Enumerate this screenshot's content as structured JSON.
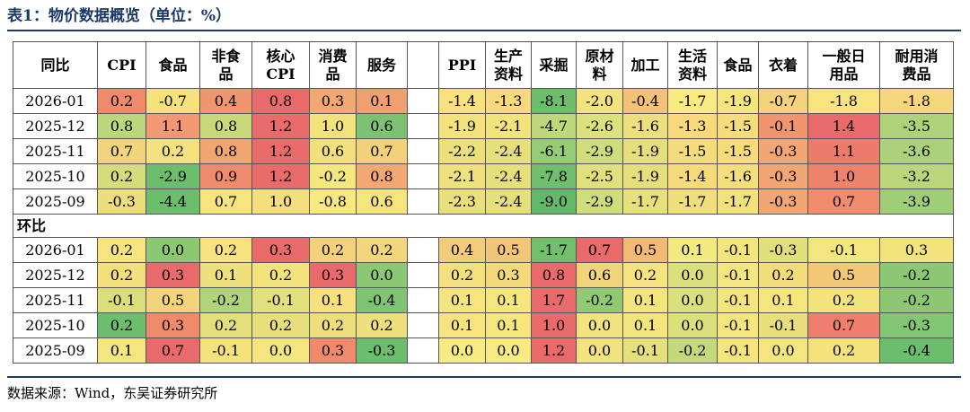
{
  "title": "表1：物价数据概览（单位：%）",
  "source": "数据来源：Wind，东吴证券研究所",
  "section_yoy": "同比",
  "section_mom": "环比",
  "headers_left": [
    "CPI",
    "食品",
    "非食\n品",
    "核心\nCPI",
    "消费\n品",
    "服务"
  ],
  "headers_right": [
    "PPI",
    "生产\n资料",
    "采掘",
    "原材\n料",
    "加工",
    "生活\n资料",
    "食品",
    "衣着",
    "一般日\n用品",
    "耐用消\n费品"
  ],
  "yoy_rows": [
    {
      "date": "2026-01",
      "left": [
        {
          "v": "0.2",
          "c": "#f08a6c"
        },
        {
          "v": "-0.7",
          "c": "#f5e27a"
        },
        {
          "v": "0.4",
          "c": "#f0956e"
        },
        {
          "v": "0.8",
          "c": "#e96a6a"
        },
        {
          "v": "0.3",
          "c": "#f1a873"
        },
        {
          "v": "0.1",
          "c": "#f0a070"
        }
      ],
      "right": [
        {
          "v": "-1.4",
          "c": "#f9e17e"
        },
        {
          "v": "-1.3",
          "c": "#f9d97d"
        },
        {
          "v": "-8.1",
          "c": "#6cbd6c"
        },
        {
          "v": "-2.0",
          "c": "#f2e37c"
        },
        {
          "v": "-0.4",
          "c": "#f4c277"
        },
        {
          "v": "-1.7",
          "c": "#faec82"
        },
        {
          "v": "-1.9",
          "c": "#f4e67d"
        },
        {
          "v": "-0.7",
          "c": "#f4d27b"
        },
        {
          "v": "-1.8",
          "c": "#f7e47f"
        },
        {
          "v": "-1.8",
          "c": "#f6d77b"
        }
      ]
    },
    {
      "date": "2025-12",
      "left": [
        {
          "v": "0.8",
          "c": "#bcd67c"
        },
        {
          "v": "1.1",
          "c": "#f29872"
        },
        {
          "v": "0.8",
          "c": "#c9d97a"
        },
        {
          "v": "1.2",
          "c": "#e96a6a"
        },
        {
          "v": "1.0",
          "c": "#f1e27c"
        },
        {
          "v": "0.6",
          "c": "#7dc273"
        }
      ],
      "right": [
        {
          "v": "-1.9",
          "c": "#f4e27e"
        },
        {
          "v": "-2.1",
          "c": "#f1e47c"
        },
        {
          "v": "-4.7",
          "c": "#bfd97a"
        },
        {
          "v": "-2.6",
          "c": "#dbe17c"
        },
        {
          "v": "-1.6",
          "c": "#ecdf7d"
        },
        {
          "v": "-1.3",
          "c": "#f8d97c"
        },
        {
          "v": "-1.5",
          "c": "#f7dc7b"
        },
        {
          "v": "-0.1",
          "c": "#f0956e"
        },
        {
          "v": "1.4",
          "c": "#e96a6a"
        },
        {
          "v": "-3.5",
          "c": "#aed27a"
        }
      ]
    },
    {
      "date": "2025-11",
      "left": [
        {
          "v": "0.7",
          "c": "#f1d47b"
        },
        {
          "v": "0.2",
          "c": "#f3e27d"
        },
        {
          "v": "0.8",
          "c": "#f1a672"
        },
        {
          "v": "1.2",
          "c": "#e96a6a"
        },
        {
          "v": "0.6",
          "c": "#f1e07c"
        },
        {
          "v": "0.7",
          "c": "#f3d17a"
        }
      ],
      "right": [
        {
          "v": "-2.2",
          "c": "#ece07d"
        },
        {
          "v": "-2.4",
          "c": "#e5e07c"
        },
        {
          "v": "-6.1",
          "c": "#97cb76"
        },
        {
          "v": "-2.9",
          "c": "#cfdd7c"
        },
        {
          "v": "-1.9",
          "c": "#e4de7c"
        },
        {
          "v": "-1.5",
          "c": "#f4dc7c"
        },
        {
          "v": "-1.5",
          "c": "#f7dc7b"
        },
        {
          "v": "-0.3",
          "c": "#f1a673"
        },
        {
          "v": "1.1",
          "c": "#ec7b6c"
        },
        {
          "v": "-3.6",
          "c": "#acd17a"
        }
      ]
    },
    {
      "date": "2025-10",
      "left": [
        {
          "v": "0.2",
          "c": "#d4dc7b"
        },
        {
          "v": "-2.9",
          "c": "#6cbd6c"
        },
        {
          "v": "0.9",
          "c": "#f08a6c"
        },
        {
          "v": "1.2",
          "c": "#e96a6a"
        },
        {
          "v": "-0.2",
          "c": "#f4e77e"
        },
        {
          "v": "0.8",
          "c": "#f3a873"
        }
      ],
      "right": [
        {
          "v": "-2.1",
          "c": "#efe17d"
        },
        {
          "v": "-2.4",
          "c": "#e5e07c"
        },
        {
          "v": "-7.8",
          "c": "#70bf6e"
        },
        {
          "v": "-2.5",
          "c": "#e0e07c"
        },
        {
          "v": "-1.9",
          "c": "#e4de7c"
        },
        {
          "v": "-1.4",
          "c": "#f6da7c"
        },
        {
          "v": "-1.6",
          "c": "#f5df7c"
        },
        {
          "v": "-0.3",
          "c": "#f1a673"
        },
        {
          "v": "1.0",
          "c": "#ee836d"
        },
        {
          "v": "-3.2",
          "c": "#bad67b"
        }
      ]
    },
    {
      "date": "2025-09",
      "left": [
        {
          "v": "-0.3",
          "c": "#ecde7c"
        },
        {
          "v": "-4.4",
          "c": "#6cbd6c"
        },
        {
          "v": "0.7",
          "c": "#f6e47e"
        },
        {
          "v": "1.0",
          "c": "#f5de7c"
        },
        {
          "v": "-0.8",
          "c": "#f7e87f"
        },
        {
          "v": "0.6",
          "c": "#f6e47d"
        }
      ],
      "right": [
        {
          "v": "-2.3",
          "c": "#e9df7d"
        },
        {
          "v": "-2.4",
          "c": "#e5e07c"
        },
        {
          "v": "-9.0",
          "c": "#63b96a"
        },
        {
          "v": "-2.9",
          "c": "#cfdd7c"
        },
        {
          "v": "-1.7",
          "c": "#e8df7d"
        },
        {
          "v": "-1.7",
          "c": "#f0e07d"
        },
        {
          "v": "-1.7",
          "c": "#f2e27d"
        },
        {
          "v": "-0.3",
          "c": "#f1a673"
        },
        {
          "v": "0.7",
          "c": "#f08d6e"
        },
        {
          "v": "-3.9",
          "c": "#a0cd78"
        }
      ]
    }
  ],
  "mom_rows": [
    {
      "date": "2026-01",
      "left": [
        {
          "v": "0.2",
          "c": "#f6e57f"
        },
        {
          "v": "0.0",
          "c": "#8cc873"
        },
        {
          "v": "0.2",
          "c": "#f6e27e"
        },
        {
          "v": "0.3",
          "c": "#e96a6a"
        },
        {
          "v": "0.2",
          "c": "#f3d27b"
        },
        {
          "v": "0.2",
          "c": "#f3d67b"
        }
      ],
      "right": [
        {
          "v": "0.4",
          "c": "#f3cc79"
        },
        {
          "v": "0.5",
          "c": "#f3c577"
        },
        {
          "v": "-1.7",
          "c": "#72bf6e"
        },
        {
          "v": "0.7",
          "c": "#e96a6a"
        },
        {
          "v": "0.5",
          "c": "#f2ba75"
        },
        {
          "v": "0.1",
          "c": "#f2ea80"
        },
        {
          "v": "-0.1",
          "c": "#f5e57e"
        },
        {
          "v": "-0.3",
          "c": "#e1df7c"
        },
        {
          "v": "-0.1",
          "c": "#f4e67e"
        },
        {
          "v": "0.3",
          "c": "#f3e37d"
        }
      ]
    },
    {
      "date": "2025-12",
      "left": [
        {
          "v": "0.2",
          "c": "#f3e07c"
        },
        {
          "v": "0.3",
          "c": "#e96a6a"
        },
        {
          "v": "0.1",
          "c": "#eee07d"
        },
        {
          "v": "0.2",
          "c": "#f2e37d"
        },
        {
          "v": "0.3",
          "c": "#e96a6a"
        },
        {
          "v": "0.0",
          "c": "#8cc873"
        }
      ],
      "right": [
        {
          "v": "0.2",
          "c": "#f4e07d"
        },
        {
          "v": "0.3",
          "c": "#f4d97b"
        },
        {
          "v": "0.8",
          "c": "#e96a6a"
        },
        {
          "v": "0.6",
          "c": "#f1d57a"
        },
        {
          "v": "0.2",
          "c": "#f4e37e"
        },
        {
          "v": "0.0",
          "c": "#dbe07c"
        },
        {
          "v": "-0.1",
          "c": "#f5e57e"
        },
        {
          "v": "0.2",
          "c": "#f3dd7b"
        },
        {
          "v": "0.5",
          "c": "#f2c877"
        },
        {
          "v": "-0.2",
          "c": "#8cc873"
        }
      ]
    },
    {
      "date": "2025-11",
      "left": [
        {
          "v": "-0.1",
          "c": "#dcde7b"
        },
        {
          "v": "0.5",
          "c": "#f5d37a"
        },
        {
          "v": "-0.2",
          "c": "#b1d47a"
        },
        {
          "v": "-0.1",
          "c": "#e1e07c"
        },
        {
          "v": "0.1",
          "c": "#f6e07d"
        },
        {
          "v": "-0.4",
          "c": "#7ec473"
        }
      ],
      "right": [
        {
          "v": "0.1",
          "c": "#f6e57e"
        },
        {
          "v": "0.1",
          "c": "#f6e67e"
        },
        {
          "v": "1.7",
          "c": "#e96a6a"
        },
        {
          "v": "-0.2",
          "c": "#91c974"
        },
        {
          "v": "0.1",
          "c": "#f2e57e"
        },
        {
          "v": "0.0",
          "c": "#dbe07c"
        },
        {
          "v": "-0.1",
          "c": "#f5e57e"
        },
        {
          "v": "0.1",
          "c": "#f6e67e"
        },
        {
          "v": "0.2",
          "c": "#f4e37d"
        },
        {
          "v": "-0.2",
          "c": "#8cc873"
        }
      ]
    },
    {
      "date": "2025-10",
      "left": [
        {
          "v": "0.2",
          "c": "#6cbd6c"
        },
        {
          "v": "0.3",
          "c": "#ef8a6c"
        },
        {
          "v": "0.2",
          "c": "#e3df7c"
        },
        {
          "v": "0.2",
          "c": "#e6df7c"
        },
        {
          "v": "0.2",
          "c": "#ecdf7c"
        },
        {
          "v": "0.2",
          "c": "#eee07c"
        }
      ],
      "right": [
        {
          "v": "0.1",
          "c": "#f6e57e"
        },
        {
          "v": "0.1",
          "c": "#f6e67e"
        },
        {
          "v": "1.0",
          "c": "#e96a6a"
        },
        {
          "v": "0.0",
          "c": "#f1e37d"
        },
        {
          "v": "0.1",
          "c": "#f2e57e"
        },
        {
          "v": "0.0",
          "c": "#dbe07c"
        },
        {
          "v": "-0.1",
          "c": "#f5e57e"
        },
        {
          "v": "-0.1",
          "c": "#e8df7c"
        },
        {
          "v": "0.7",
          "c": "#ee7f6c"
        },
        {
          "v": "-0.3",
          "c": "#82c574"
        }
      ]
    },
    {
      "date": "2025-09",
      "left": [
        {
          "v": "0.1",
          "c": "#f6e67f"
        },
        {
          "v": "0.7",
          "c": "#e96a6a"
        },
        {
          "v": "-0.1",
          "c": "#f4e27d"
        },
        {
          "v": "0.0",
          "c": "#f4e57e"
        },
        {
          "v": "0.3",
          "c": "#ef8a6c"
        },
        {
          "v": "-0.3",
          "c": "#6cbd6c"
        }
      ],
      "right": [
        {
          "v": "0.0",
          "c": "#f8eb81"
        },
        {
          "v": "0.0",
          "c": "#f8eb81"
        },
        {
          "v": "1.2",
          "c": "#e96a6a"
        },
        {
          "v": "0.0",
          "c": "#f1e37d"
        },
        {
          "v": "-0.1",
          "c": "#e6e07c"
        },
        {
          "v": "-0.2",
          "c": "#c3d97b"
        },
        {
          "v": "-0.1",
          "c": "#f5e57e"
        },
        {
          "v": "0.0",
          "c": "#f5e57e"
        },
        {
          "v": "0.2",
          "c": "#f4e37d"
        },
        {
          "v": "-0.4",
          "c": "#6cbd6c"
        }
      ]
    }
  ]
}
